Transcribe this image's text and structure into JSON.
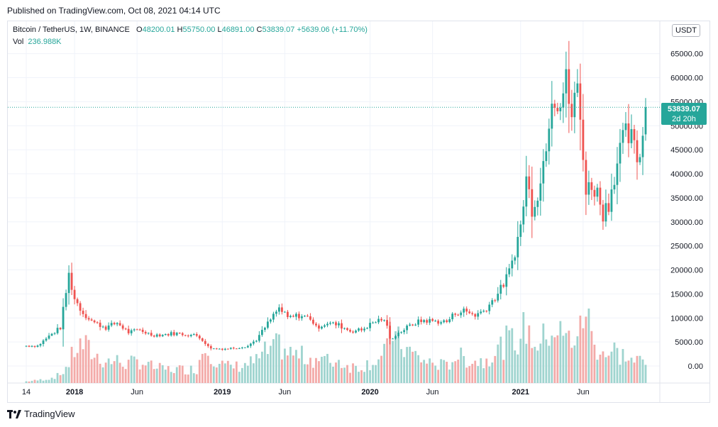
{
  "header": {
    "published": "Published on TradingView.com, Oct 08, 2021 04:14 UTC"
  },
  "legend": {
    "symbol": "Bitcoin / TetherUS, 1W, BINANCE",
    "o_label": "O",
    "o": "48200.01",
    "h_label": "H",
    "h": "55750.00",
    "l_label": "L",
    "l": "46891.00",
    "c_label": "C",
    "c": "53839.07",
    "change": "+5639.06 (+11.70%)",
    "vol_label": "Vol",
    "vol": "236.988K"
  },
  "currency": "USDT",
  "last_price_tag": {
    "price": "53839.07",
    "countdown": "2d 20h"
  },
  "footer": {
    "brand": "TradingView"
  },
  "colors": {
    "up": "#26a69a",
    "down": "#ef5350",
    "up_vol": "#9fd4cf",
    "down_vol": "#f3aaa8",
    "grid": "#f0f3fa"
  },
  "chart_data": {
    "type": "candlestick",
    "title": "Bitcoin / TetherUS, 1W, BINANCE",
    "y_ticks": [
      "65000.00",
      "60000.00",
      "55000.00",
      "50000.00",
      "45000.00",
      "40000.00",
      "35000.00",
      "30000.00",
      "25000.00",
      "20000.00",
      "15000.00",
      "10000.00",
      "5000.00",
      "0.00"
    ],
    "ylim": [
      -3000,
      69000
    ],
    "x_ticks": [
      {
        "label": "14",
        "i": 0
      },
      {
        "label": "2018",
        "i": 17
      },
      {
        "label": "Jun",
        "i": 39
      },
      {
        "label": "2019",
        "i": 69
      },
      {
        "label": "Jun",
        "i": 91
      },
      {
        "label": "2020",
        "i": 121
      },
      {
        "label": "Jun",
        "i": 143
      },
      {
        "label": "2021",
        "i": 174
      },
      {
        "label": "Jun",
        "i": 196
      }
    ],
    "grid": true,
    "volume_scale_max": 15500,
    "anchors": [
      [
        0,
        4200,
        0.3
      ],
      [
        4,
        4200,
        0.5
      ],
      [
        8,
        6200,
        0.8
      ],
      [
        12,
        8000,
        1.5
      ],
      [
        15,
        19000,
        3.5
      ],
      [
        17,
        14000,
        6
      ],
      [
        20,
        11000,
        7
      ],
      [
        24,
        9000,
        5
      ],
      [
        28,
        8000,
        4
      ],
      [
        32,
        9000,
        4
      ],
      [
        36,
        7000,
        3.5
      ],
      [
        40,
        7500,
        4
      ],
      [
        44,
        6500,
        3
      ],
      [
        48,
        6500,
        2.5
      ],
      [
        52,
        6800,
        2.5
      ],
      [
        56,
        6600,
        2.5
      ],
      [
        60,
        6300,
        2.5
      ],
      [
        62,
        5500,
        6
      ],
      [
        64,
        4000,
        7
      ],
      [
        66,
        3600,
        4.5
      ],
      [
        70,
        3600,
        3
      ],
      [
        74,
        3800,
        3
      ],
      [
        78,
        4200,
        3.5
      ],
      [
        81,
        5500,
        4
      ],
      [
        84,
        8000,
        5.5
      ],
      [
        87,
        10500,
        6
      ],
      [
        89,
        12000,
        7
      ],
      [
        92,
        10000,
        5.5
      ],
      [
        96,
        10500,
        5
      ],
      [
        100,
        10000,
        4.5
      ],
      [
        102,
        8000,
        4.5
      ],
      [
        106,
        9000,
        4
      ],
      [
        110,
        8500,
        4
      ],
      [
        114,
        7300,
        3
      ],
      [
        118,
        7500,
        3
      ],
      [
        122,
        9000,
        4
      ],
      [
        125,
        9800,
        4.5
      ],
      [
        127,
        8500,
        6
      ],
      [
        128,
        5500,
        12
      ],
      [
        130,
        6500,
        8
      ],
      [
        134,
        8000,
        6
      ],
      [
        137,
        9000,
        5
      ],
      [
        140,
        9500,
        4
      ],
      [
        144,
        9300,
        3.5
      ],
      [
        148,
        9200,
        3
      ],
      [
        151,
        11000,
        5
      ],
      [
        154,
        11500,
        4.5
      ],
      [
        158,
        10600,
        4
      ],
      [
        161,
        11500,
        4
      ],
      [
        164,
        13500,
        5.5
      ],
      [
        167,
        16000,
        6.5
      ],
      [
        170,
        19500,
        8
      ],
      [
        172,
        24000,
        7
      ],
      [
        174,
        29000,
        9
      ],
      [
        176,
        39000,
        10
      ],
      [
        178,
        33000,
        8
      ],
      [
        181,
        38000,
        7
      ],
      [
        183,
        47000,
        9
      ],
      [
        185,
        57000,
        10
      ],
      [
        188,
        55000,
        9
      ],
      [
        190,
        59000,
        8
      ],
      [
        192,
        52000,
        8
      ],
      [
        194,
        58000,
        9
      ],
      [
        196,
        45000,
        10
      ],
      [
        197,
        36000,
        15.5
      ],
      [
        199,
        38000,
        8
      ],
      [
        201,
        36000,
        6.5
      ],
      [
        203,
        32000,
        6
      ],
      [
        205,
        34000,
        5
      ],
      [
        207,
        40000,
        6
      ],
      [
        209,
        45000,
        5
      ],
      [
        211,
        48000,
        5
      ],
      [
        213,
        47000,
        4
      ],
      [
        215,
        43000,
        4
      ],
      [
        217,
        47500,
        4
      ],
      [
        218,
        53839,
        3
      ]
    ],
    "candle_count": 219,
    "last_candle": {
      "open": 48200.01,
      "high": 55750.0,
      "low": 46891.0,
      "close": 53839.07
    }
  }
}
